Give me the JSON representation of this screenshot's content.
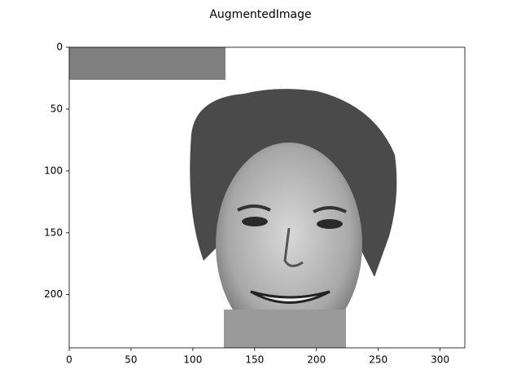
{
  "chart_data": {
    "type": "image",
    "title": "AugmentedImage",
    "xlim": [
      0,
      320
    ],
    "ylim": [
      243,
      0
    ],
    "xticks": [
      0,
      50,
      100,
      150,
      200,
      250,
      300
    ],
    "yticks": [
      0,
      50,
      100,
      150,
      200
    ]
  }
}
